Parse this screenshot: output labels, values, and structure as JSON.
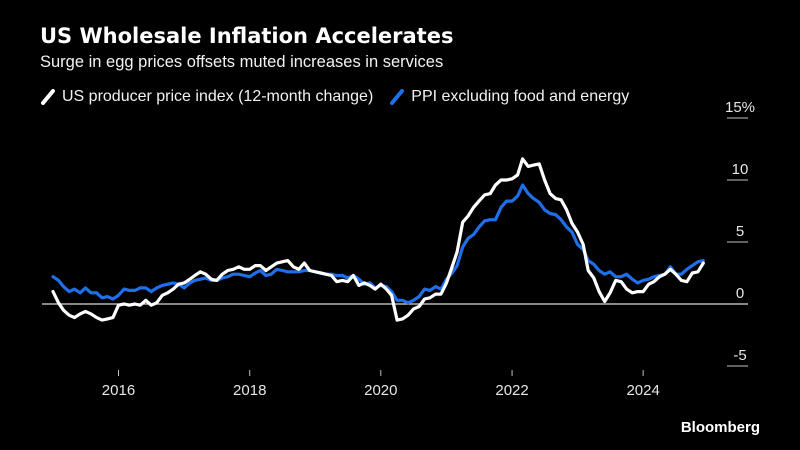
{
  "chart_data": {
    "type": "line",
    "title": "US Wholesale Inflation Accelerates",
    "subtitle": "Surge in egg prices offsets muted increases in services",
    "source": "Bloomberg",
    "ylim": [
      -5,
      15
    ],
    "xlim": [
      "2014-11-01",
      "2025-04-01"
    ],
    "y_ticks": [
      -5,
      0,
      5,
      10,
      15
    ],
    "y_tick_labels": [
      "-5",
      "0",
      "5",
      "10",
      "15%"
    ],
    "x_ticks": [
      "2016-01-01",
      "2018-01-01",
      "2020-01-01",
      "2022-01-01",
      "2024-01-01"
    ],
    "x_tick_labels": [
      "2016",
      "2018",
      "2020",
      "2022",
      "2024"
    ],
    "zero_line": true,
    "grid": false,
    "legend_position": "top-left",
    "series": [
      {
        "name": "US producer price index (12-month change)",
        "color": "#ffffff",
        "points": [
          [
            "2015-01-01",
            1.0
          ],
          [
            "2015-02-01",
            0.1
          ],
          [
            "2015-03-01",
            -0.5
          ],
          [
            "2015-04-01",
            -0.9
          ],
          [
            "2015-05-01",
            -1.1
          ],
          [
            "2015-06-01",
            -0.8
          ],
          [
            "2015-07-01",
            -0.6
          ],
          [
            "2015-08-01",
            -0.8
          ],
          [
            "2015-09-01",
            -1.1
          ],
          [
            "2015-10-01",
            -1.3
          ],
          [
            "2015-11-01",
            -1.2
          ],
          [
            "2015-12-01",
            -1.1
          ],
          [
            "2016-01-01",
            -0.1
          ],
          [
            "2016-02-01",
            0.0
          ],
          [
            "2016-03-01",
            -0.1
          ],
          [
            "2016-04-01",
            0.0
          ],
          [
            "2016-05-01",
            -0.1
          ],
          [
            "2016-06-01",
            0.3
          ],
          [
            "2016-07-01",
            -0.1
          ],
          [
            "2016-08-01",
            0.1
          ],
          [
            "2016-09-01",
            0.7
          ],
          [
            "2016-10-01",
            0.9
          ],
          [
            "2016-11-01",
            1.2
          ],
          [
            "2016-12-01",
            1.6
          ],
          [
            "2017-01-01",
            1.7
          ],
          [
            "2017-02-01",
            2.0
          ],
          [
            "2017-03-01",
            2.3
          ],
          [
            "2017-04-01",
            2.6
          ],
          [
            "2017-05-01",
            2.4
          ],
          [
            "2017-06-01",
            2.0
          ],
          [
            "2017-07-01",
            1.9
          ],
          [
            "2017-08-01",
            2.4
          ],
          [
            "2017-09-01",
            2.7
          ],
          [
            "2017-10-01",
            2.8
          ],
          [
            "2017-11-01",
            3.0
          ],
          [
            "2017-12-01",
            2.8
          ],
          [
            "2018-01-01",
            2.8
          ],
          [
            "2018-02-01",
            3.1
          ],
          [
            "2018-03-01",
            3.1
          ],
          [
            "2018-04-01",
            2.7
          ],
          [
            "2018-05-01",
            3.0
          ],
          [
            "2018-06-01",
            3.3
          ],
          [
            "2018-07-01",
            3.4
          ],
          [
            "2018-08-01",
            3.5
          ],
          [
            "2018-09-01",
            3.0
          ],
          [
            "2018-10-01",
            2.8
          ],
          [
            "2018-11-01",
            3.3
          ],
          [
            "2018-12-01",
            2.7
          ],
          [
            "2019-01-01",
            2.6
          ],
          [
            "2019-02-01",
            2.5
          ],
          [
            "2019-03-01",
            2.4
          ],
          [
            "2019-04-01",
            2.3
          ],
          [
            "2019-05-01",
            1.8
          ],
          [
            "2019-06-01",
            1.9
          ],
          [
            "2019-07-01",
            1.8
          ],
          [
            "2019-08-01",
            2.3
          ],
          [
            "2019-09-01",
            1.5
          ],
          [
            "2019-10-01",
            1.7
          ],
          [
            "2019-11-01",
            1.5
          ],
          [
            "2019-12-01",
            1.2
          ],
          [
            "2020-01-01",
            1.6
          ],
          [
            "2020-02-01",
            1.2
          ],
          [
            "2020-03-01",
            0.7
          ],
          [
            "2020-04-01",
            -1.3
          ],
          [
            "2020-05-01",
            -1.2
          ],
          [
            "2020-06-01",
            -0.9
          ],
          [
            "2020-07-01",
            -0.4
          ],
          [
            "2020-08-01",
            -0.2
          ],
          [
            "2020-09-01",
            0.4
          ],
          [
            "2020-10-01",
            0.5
          ],
          [
            "2020-11-01",
            0.8
          ],
          [
            "2020-12-01",
            0.8
          ],
          [
            "2021-01-01",
            1.7
          ],
          [
            "2021-02-01",
            3.0
          ],
          [
            "2021-03-01",
            4.2
          ],
          [
            "2021-04-01",
            6.6
          ],
          [
            "2021-05-01",
            7.1
          ],
          [
            "2021-06-01",
            7.8
          ],
          [
            "2021-07-01",
            8.3
          ],
          [
            "2021-08-01",
            8.8
          ],
          [
            "2021-09-01",
            8.9
          ],
          [
            "2021-10-01",
            9.6
          ],
          [
            "2021-11-01",
            10.0
          ],
          [
            "2021-12-01",
            10.0
          ],
          [
            "2022-01-01",
            10.1
          ],
          [
            "2022-02-01",
            10.4
          ],
          [
            "2022-03-01",
            11.7
          ],
          [
            "2022-04-01",
            11.1
          ],
          [
            "2022-05-01",
            11.2
          ],
          [
            "2022-06-01",
            11.3
          ],
          [
            "2022-07-01",
            10.0
          ],
          [
            "2022-08-01",
            8.9
          ],
          [
            "2022-09-01",
            8.5
          ],
          [
            "2022-10-01",
            8.4
          ],
          [
            "2022-11-01",
            7.6
          ],
          [
            "2022-12-01",
            6.5
          ],
          [
            "2023-01-01",
            5.8
          ],
          [
            "2023-02-01",
            4.8
          ],
          [
            "2023-03-01",
            2.7
          ],
          [
            "2023-04-01",
            2.1
          ],
          [
            "2023-05-01",
            1.0
          ],
          [
            "2023-06-01",
            0.2
          ],
          [
            "2023-07-01",
            0.9
          ],
          [
            "2023-08-01",
            1.9
          ],
          [
            "2023-09-01",
            1.8
          ],
          [
            "2023-10-01",
            1.2
          ],
          [
            "2023-11-01",
            0.9
          ],
          [
            "2023-12-01",
            1.0
          ],
          [
            "2024-01-01",
            1.0
          ],
          [
            "2024-02-01",
            1.6
          ],
          [
            "2024-03-01",
            1.8
          ],
          [
            "2024-04-01",
            2.2
          ],
          [
            "2024-05-01",
            2.4
          ],
          [
            "2024-06-01",
            2.8
          ],
          [
            "2024-07-01",
            2.4
          ],
          [
            "2024-08-01",
            1.9
          ],
          [
            "2024-09-01",
            1.8
          ],
          [
            "2024-10-01",
            2.5
          ],
          [
            "2024-11-01",
            2.6
          ],
          [
            "2024-12-01",
            3.3
          ]
        ]
      },
      {
        "name": "PPI excluding food and energy",
        "color": "#1f6feb",
        "points": [
          [
            "2015-01-01",
            2.2
          ],
          [
            "2015-02-01",
            1.9
          ],
          [
            "2015-03-01",
            1.4
          ],
          [
            "2015-04-01",
            1.0
          ],
          [
            "2015-05-01",
            1.2
          ],
          [
            "2015-06-01",
            0.9
          ],
          [
            "2015-07-01",
            1.3
          ],
          [
            "2015-08-01",
            0.9
          ],
          [
            "2015-09-01",
            0.9
          ],
          [
            "2015-10-01",
            0.5
          ],
          [
            "2015-11-01",
            0.6
          ],
          [
            "2015-12-01",
            0.4
          ],
          [
            "2016-01-01",
            0.7
          ],
          [
            "2016-02-01",
            1.2
          ],
          [
            "2016-03-01",
            1.1
          ],
          [
            "2016-04-01",
            1.1
          ],
          [
            "2016-05-01",
            1.3
          ],
          [
            "2016-06-01",
            1.3
          ],
          [
            "2016-07-01",
            1.0
          ],
          [
            "2016-08-01",
            1.3
          ],
          [
            "2016-09-01",
            1.5
          ],
          [
            "2016-10-01",
            1.6
          ],
          [
            "2016-11-01",
            1.7
          ],
          [
            "2016-12-01",
            1.6
          ],
          [
            "2017-01-01",
            1.3
          ],
          [
            "2017-02-01",
            1.7
          ],
          [
            "2017-03-01",
            1.9
          ],
          [
            "2017-04-01",
            2.0
          ],
          [
            "2017-05-01",
            2.1
          ],
          [
            "2017-06-01",
            1.9
          ],
          [
            "2017-07-01",
            1.9
          ],
          [
            "2017-08-01",
            2.1
          ],
          [
            "2017-09-01",
            2.2
          ],
          [
            "2017-10-01",
            2.4
          ],
          [
            "2017-11-01",
            2.4
          ],
          [
            "2017-12-01",
            2.3
          ],
          [
            "2018-01-01",
            2.2
          ],
          [
            "2018-02-01",
            2.5
          ],
          [
            "2018-03-01",
            2.7
          ],
          [
            "2018-04-01",
            2.3
          ],
          [
            "2018-05-01",
            2.4
          ],
          [
            "2018-06-01",
            2.8
          ],
          [
            "2018-07-01",
            2.7
          ],
          [
            "2018-08-01",
            2.6
          ],
          [
            "2018-09-01",
            2.6
          ],
          [
            "2018-10-01",
            2.6
          ],
          [
            "2018-11-01",
            2.7
          ],
          [
            "2018-12-01",
            2.7
          ],
          [
            "2019-01-01",
            2.6
          ],
          [
            "2019-02-01",
            2.5
          ],
          [
            "2019-03-01",
            2.4
          ],
          [
            "2019-04-01",
            2.4
          ],
          [
            "2019-05-01",
            2.3
          ],
          [
            "2019-06-01",
            2.3
          ],
          [
            "2019-07-01",
            2.1
          ],
          [
            "2019-08-01",
            2.3
          ],
          [
            "2019-09-01",
            2.0
          ],
          [
            "2019-10-01",
            1.6
          ],
          [
            "2019-11-01",
            1.7
          ],
          [
            "2019-12-01",
            1.3
          ],
          [
            "2020-01-01",
            1.5
          ],
          [
            "2020-02-01",
            1.4
          ],
          [
            "2020-03-01",
            1.0
          ],
          [
            "2020-04-01",
            0.3
          ],
          [
            "2020-05-01",
            0.3
          ],
          [
            "2020-06-01",
            0.1
          ],
          [
            "2020-07-01",
            0.3
          ],
          [
            "2020-08-01",
            0.6
          ],
          [
            "2020-09-01",
            1.2
          ],
          [
            "2020-10-01",
            1.1
          ],
          [
            "2020-11-01",
            1.4
          ],
          [
            "2020-12-01",
            1.2
          ],
          [
            "2021-01-01",
            2.0
          ],
          [
            "2021-02-01",
            2.5
          ],
          [
            "2021-03-01",
            3.1
          ],
          [
            "2021-04-01",
            4.6
          ],
          [
            "2021-05-01",
            5.3
          ],
          [
            "2021-06-01",
            5.6
          ],
          [
            "2021-07-01",
            6.2
          ],
          [
            "2021-08-01",
            6.7
          ],
          [
            "2021-09-01",
            6.8
          ],
          [
            "2021-10-01",
            6.8
          ],
          [
            "2021-11-01",
            7.8
          ],
          [
            "2021-12-01",
            8.3
          ],
          [
            "2022-01-01",
            8.3
          ],
          [
            "2022-02-01",
            8.7
          ],
          [
            "2022-03-01",
            9.6
          ],
          [
            "2022-04-01",
            8.9
          ],
          [
            "2022-05-01",
            8.5
          ],
          [
            "2022-06-01",
            8.2
          ],
          [
            "2022-07-01",
            7.6
          ],
          [
            "2022-08-01",
            7.3
          ],
          [
            "2022-09-01",
            7.2
          ],
          [
            "2022-10-01",
            6.8
          ],
          [
            "2022-11-01",
            6.2
          ],
          [
            "2022-12-01",
            5.8
          ],
          [
            "2023-01-01",
            4.8
          ],
          [
            "2023-02-01",
            4.4
          ],
          [
            "2023-03-01",
            3.5
          ],
          [
            "2023-04-01",
            3.2
          ],
          [
            "2023-05-01",
            2.7
          ],
          [
            "2023-06-01",
            2.4
          ],
          [
            "2023-07-01",
            2.6
          ],
          [
            "2023-08-01",
            2.2
          ],
          [
            "2023-09-01",
            2.2
          ],
          [
            "2023-10-01",
            2.4
          ],
          [
            "2023-11-01",
            2.0
          ],
          [
            "2023-12-01",
            1.7
          ],
          [
            "2024-01-01",
            1.9
          ],
          [
            "2024-02-01",
            2.0
          ],
          [
            "2024-03-01",
            2.2
          ],
          [
            "2024-04-01",
            2.3
          ],
          [
            "2024-05-01",
            2.4
          ],
          [
            "2024-06-01",
            3.0
          ],
          [
            "2024-07-01",
            2.4
          ],
          [
            "2024-08-01",
            2.4
          ],
          [
            "2024-09-01",
            2.8
          ],
          [
            "2024-10-01",
            3.1
          ],
          [
            "2024-11-01",
            3.4
          ],
          [
            "2024-12-01",
            3.5
          ]
        ]
      }
    ]
  }
}
